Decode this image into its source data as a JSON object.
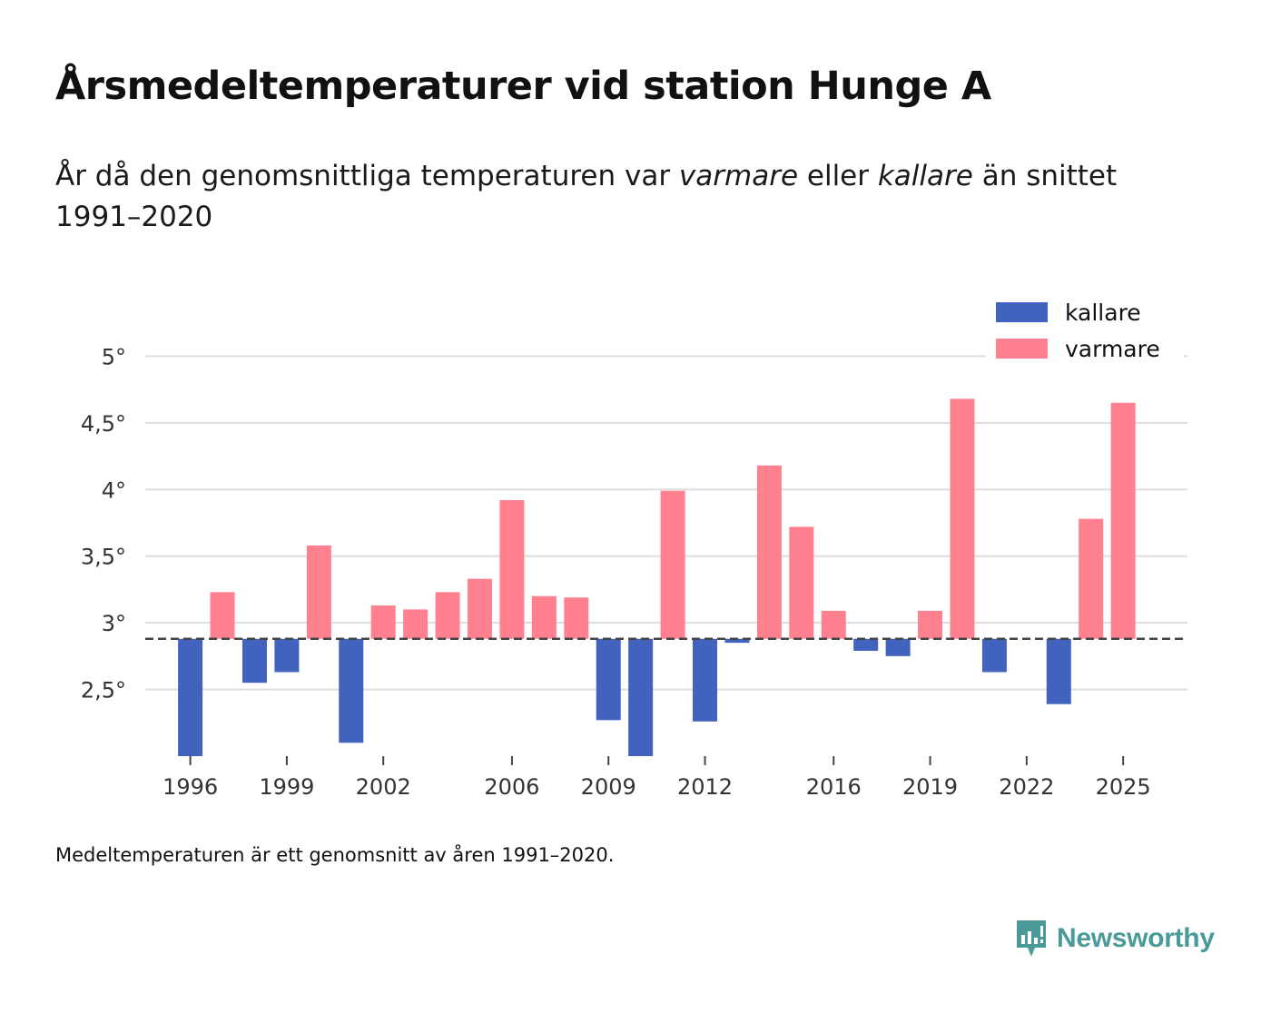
{
  "title": "Årsmedeltemperaturer vid station Hunge A",
  "subtitle": {
    "part1": "År då den genomsnittliga temperaturen var ",
    "warm_word": "varmare",
    "part2": " eller ",
    "cold_word": "kallare",
    "part3": " än snittet 1991–2020"
  },
  "footnote": "Medeltemperaturen är ett genomsnitt av åren 1991–2020.",
  "brand": {
    "name": "Newsworthy"
  },
  "colors": {
    "cold": "#4263bd",
    "warm": "#ff8190",
    "grid": "#dddddd",
    "baseline": "#444444",
    "brand": "#4a9a9a"
  },
  "chart_data": {
    "type": "bar",
    "title": "Årsmedeltemperaturer vid station Hunge A",
    "xlabel": "",
    "ylabel": "",
    "baseline": 2.88,
    "ylim": [
      2.0,
      5.2
    ],
    "xlim": [
      1994.6,
      2027.0
    ],
    "y_ticks": [
      2.5,
      3,
      3.5,
      4,
      4.5,
      5
    ],
    "y_tick_labels": [
      "2,5°",
      "3°",
      "3,5°",
      "4°",
      "4,5°",
      "5°"
    ],
    "x_ticks": [
      1996,
      1999,
      2002,
      2006,
      2009,
      2012,
      2016,
      2019,
      2022,
      2025
    ],
    "x_tick_labels": [
      "1996",
      "1999",
      "2002",
      "2006",
      "2009",
      "2012",
      "2016",
      "2019",
      "2022",
      "2025"
    ],
    "legend": [
      {
        "key": "cold",
        "label": "kallare"
      },
      {
        "key": "warm",
        "label": "varmare"
      }
    ],
    "legend_position": "top-right",
    "years": [
      1996,
      1997,
      1998,
      1999,
      2000,
      2001,
      2002,
      2003,
      2004,
      2005,
      2006,
      2007,
      2008,
      2009,
      2010,
      2011,
      2012,
      2013,
      2014,
      2015,
      2016,
      2017,
      2018,
      2019,
      2020,
      2021,
      2022,
      2023,
      2024,
      2025
    ],
    "values": [
      2.0,
      3.23,
      2.55,
      2.63,
      3.58,
      2.1,
      3.13,
      3.1,
      3.23,
      3.33,
      3.92,
      3.2,
      3.19,
      2.27,
      2.0,
      3.99,
      2.26,
      2.85,
      4.18,
      3.72,
      3.09,
      2.79,
      2.75,
      3.09,
      4.68,
      2.63,
      2.88,
      2.39,
      3.78,
      4.65
    ]
  }
}
